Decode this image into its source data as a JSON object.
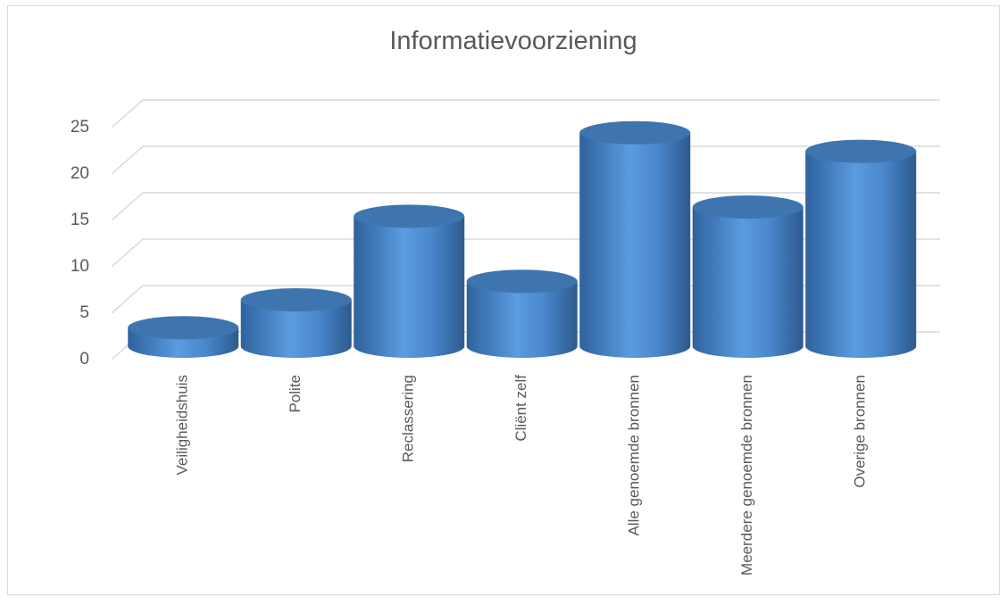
{
  "chart_data": {
    "type": "bar3d",
    "title": "Informatievoorziening",
    "categories": [
      "Veiligheidshuis",
      "Polite",
      "Reclassering",
      "Cliënt zelf",
      "Alle genoemde bronnen",
      "Meerdere genoemde bronnen",
      "Overige bronnen"
    ],
    "values": [
      2,
      5,
      14,
      7,
      23,
      15,
      21
    ],
    "color": "#4a89d0",
    "ylim": [
      0,
      25
    ],
    "yticks": [
      0,
      5,
      10,
      15,
      20,
      25
    ],
    "grid": true
  }
}
